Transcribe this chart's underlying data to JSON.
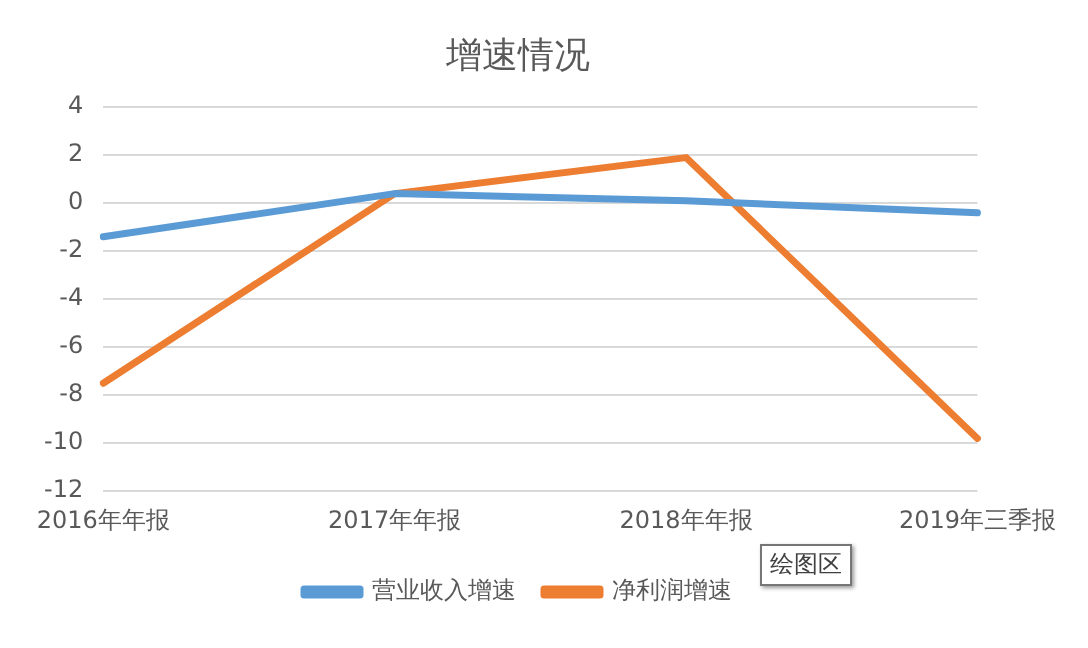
{
  "chart_data": {
    "type": "line",
    "title": "增速情况",
    "categories": [
      "2016年年报",
      "2017年年报",
      "2018年年报",
      "2019年三季报"
    ],
    "series": [
      {
        "name": "营业收入增速",
        "color": "#5b9bd5",
        "values": [
          -1.4,
          0.4,
          0.1,
          -0.4
        ]
      },
      {
        "name": "净利润增速",
        "color": "#ed7d31",
        "values": [
          -7.5,
          0.4,
          1.9,
          -9.8
        ]
      }
    ],
    "ylim": [
      -12,
      4
    ],
    "yticks": [
      -12,
      -10,
      -8,
      -6,
      -4,
      -2,
      0,
      2,
      4
    ],
    "grid": "y",
    "legend": "bottom",
    "marker": "none",
    "line_style": "solid",
    "annotations": [
      "绘图区"
    ]
  }
}
